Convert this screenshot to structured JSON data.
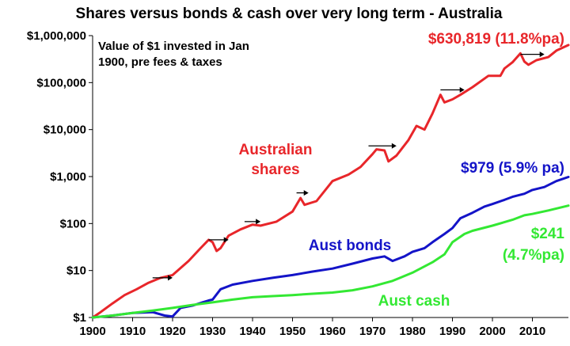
{
  "chart_data": {
    "type": "line",
    "title": "Shares versus bonds & cash over very long term - Australia",
    "annotation": [
      "Value of $1 invested in Jan",
      "1900, pre fees & taxes"
    ],
    "y_scale": "log",
    "ylim": [
      1,
      1000000
    ],
    "xlim": [
      1900,
      2019
    ],
    "x_ticks": [
      1900,
      1910,
      1920,
      1930,
      1940,
      1950,
      1960,
      1970,
      1980,
      1990,
      2000,
      2010
    ],
    "x_tick_labels": [
      "1900",
      "1910",
      "1920",
      "1930",
      "1940",
      "1950",
      "1960",
      "1970",
      "1980",
      "1990",
      "2000",
      "2010"
    ],
    "y_ticks": [
      1,
      10,
      100,
      1000,
      10000,
      100000,
      1000000
    ],
    "y_tick_labels": [
      "$1",
      "$10",
      "$100",
      "$1,000",
      "$10,000",
      "$100,000",
      "$1,000,000"
    ],
    "grid": false,
    "colors": {
      "shares": "#e8262a",
      "bonds": "#1414c8",
      "cash": "#33e833",
      "arrow": "#000000",
      "axis": "#000000"
    },
    "series": [
      {
        "key": "shares",
        "label_lines": [
          "Australian",
          "shares"
        ],
        "end_label": "$630,819 (11.8%pa)",
        "x": [
          1900,
          1902,
          1905,
          1908,
          1911,
          1914,
          1917,
          1920,
          1924,
          1927,
          1929,
          1930,
          1931,
          1932,
          1934,
          1937,
          1940,
          1942,
          1946,
          1950,
          1952,
          1953,
          1956,
          1960,
          1964,
          1967,
          1970,
          1971,
          1973,
          1974,
          1976,
          1979,
          1981,
          1983,
          1985,
          1987,
          1988,
          1990,
          1992,
          1995,
          1999,
          2002,
          2003,
          2005,
          2007,
          2008,
          2009,
          2011,
          2014,
          2016,
          2019
        ],
        "y": [
          1,
          1.3,
          2,
          3,
          4,
          5.5,
          7,
          8,
          16,
          30,
          45,
          40,
          26,
          30,
          55,
          75,
          95,
          90,
          110,
          180,
          350,
          250,
          300,
          800,
          1100,
          1600,
          3000,
          3800,
          3600,
          2100,
          2800,
          6000,
          12000,
          10000,
          22000,
          55000,
          38000,
          44000,
          55000,
          80000,
          140000,
          140000,
          200000,
          270000,
          420000,
          280000,
          240000,
          300000,
          350000,
          480000,
          630819
        ]
      },
      {
        "key": "bonds",
        "label_lines": [
          "Aust bonds"
        ],
        "end_label": "$979 (5.9% pa)",
        "x": [
          1900,
          1905,
          1910,
          1915,
          1918,
          1920,
          1922,
          1925,
          1929,
          1930,
          1932,
          1935,
          1940,
          1945,
          1950,
          1955,
          1960,
          1965,
          1970,
          1973,
          1975,
          1978,
          1980,
          1983,
          1985,
          1988,
          1990,
          1992,
          1995,
          1998,
          2000,
          2003,
          2005,
          2008,
          2010,
          2013,
          2016,
          2019
        ],
        "y": [
          1,
          1.1,
          1.25,
          1.3,
          1.1,
          1.05,
          1.6,
          1.8,
          2.3,
          2.4,
          4,
          5,
          6,
          7,
          8,
          9.5,
          11,
          14,
          18,
          20,
          16,
          20,
          25,
          30,
          40,
          60,
          80,
          130,
          170,
          230,
          260,
          320,
          370,
          430,
          520,
          600,
          800,
          979
        ]
      },
      {
        "key": "cash",
        "label_lines": [
          "Aust cash"
        ],
        "end_label_lines": [
          "$241",
          "(4.7%pa)"
        ],
        "x": [
          1900,
          1905,
          1910,
          1915,
          1920,
          1925,
          1930,
          1935,
          1940,
          1945,
          1950,
          1955,
          1960,
          1965,
          1970,
          1975,
          1980,
          1985,
          1988,
          1990,
          1993,
          1995,
          2000,
          2005,
          2008,
          2010,
          2014,
          2019
        ],
        "y": [
          1,
          1.1,
          1.25,
          1.4,
          1.6,
          1.85,
          2.1,
          2.4,
          2.7,
          2.85,
          3.0,
          3.2,
          3.4,
          3.8,
          4.6,
          6,
          9,
          15,
          22,
          40,
          60,
          70,
          90,
          120,
          150,
          160,
          190,
          241
        ]
      }
    ],
    "arrows": [
      {
        "x1": 1915,
        "x2": 1920,
        "y": 7
      },
      {
        "x1": 1929,
        "x2": 1934,
        "y": 45
      },
      {
        "x1": 1938,
        "x2": 1942,
        "y": 110
      },
      {
        "x1": 1951,
        "x2": 1954,
        "y": 450
      },
      {
        "x1": 1969,
        "x2": 1976,
        "y": 4500
      },
      {
        "x1": 1987,
        "x2": 1993,
        "y": 70000
      },
      {
        "x1": 2007,
        "x2": 2013,
        "y": 400000
      }
    ]
  }
}
